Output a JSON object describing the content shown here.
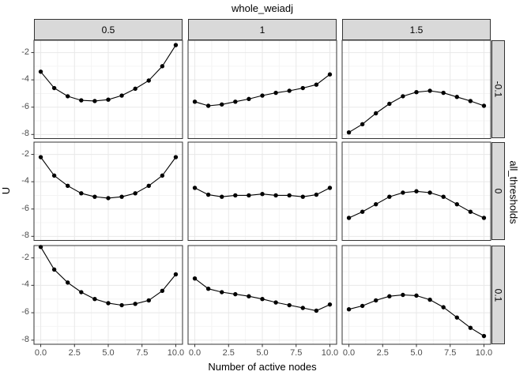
{
  "facets": {
    "col_title": "whole_weiadj",
    "row_title": "all_thresholds",
    "columns": [
      "0.5",
      "1",
      "1.5"
    ],
    "rows": [
      "-0.1",
      "0",
      "0.1"
    ]
  },
  "axes": {
    "x_title": "Number of active nodes",
    "y_title": "U",
    "x_tick_labels": [
      "0.0",
      "2.5",
      "5.0",
      "7.5",
      "10.0"
    ],
    "y_tick_labels": [
      "-2",
      "-4",
      "-6",
      "-8"
    ]
  },
  "colors": {
    "strip_fill": "#d9d9d9",
    "strip_border": "#333333",
    "panel_border": "#333333",
    "grid_major": "#e8e8e8",
    "grid_minor": "#f4f4f4",
    "series": "#000000",
    "tick_mark": "#333333",
    "tick_text": "#4d4d4d",
    "label_text": "#000000"
  },
  "chart_data": {
    "type": "line",
    "title": "whole_weiadj",
    "xlabel": "Number of active nodes",
    "ylabel": "U",
    "facet_columns_variable": "whole_weiadj",
    "facet_rows_variable": "all_thresholds",
    "x": [
      0,
      1,
      2,
      3,
      4,
      5,
      6,
      7,
      8,
      9,
      10
    ],
    "x_ticks": [
      0,
      2.5,
      5,
      7.5,
      10
    ],
    "y_ticks": [
      -2,
      -4,
      -6,
      -8
    ],
    "x_minor_ticks": [
      1.25,
      3.75,
      6.25,
      8.75
    ],
    "y_minor_ticks": [
      -3,
      -5,
      -7
    ],
    "xlim": [
      -0.5,
      10.5
    ],
    "ylim": [
      -8.3,
      -1.1
    ],
    "grid": true,
    "legend": "none",
    "panels": [
      {
        "whole_weiadj": "0.5",
        "all_thresholds": "-0.1",
        "values": [
          -3.4,
          -4.6,
          -5.2,
          -5.5,
          -5.55,
          -5.45,
          -5.15,
          -4.65,
          -4.05,
          -3.0,
          -1.45
        ]
      },
      {
        "whole_weiadj": "1",
        "all_thresholds": "-0.1",
        "values": [
          -5.6,
          -5.9,
          -5.8,
          -5.6,
          -5.4,
          -5.15,
          -4.95,
          -4.8,
          -4.6,
          -4.35,
          -3.6
        ]
      },
      {
        "whole_weiadj": "1.5",
        "all_thresholds": "-0.1",
        "values": [
          -7.85,
          -7.25,
          -6.45,
          -5.75,
          -5.2,
          -4.9,
          -4.8,
          -4.95,
          -5.25,
          -5.55,
          -5.9
        ]
      },
      {
        "whole_weiadj": "0.5",
        "all_thresholds": "0",
        "values": [
          -2.2,
          -3.55,
          -4.3,
          -4.85,
          -5.1,
          -5.2,
          -5.1,
          -4.85,
          -4.3,
          -3.55,
          -2.2
        ]
      },
      {
        "whole_weiadj": "1",
        "all_thresholds": "0",
        "values": [
          -4.45,
          -4.95,
          -5.1,
          -5.0,
          -5.0,
          -4.9,
          -5.0,
          -5.0,
          -5.1,
          -4.95,
          -4.45
        ]
      },
      {
        "whole_weiadj": "1.5",
        "all_thresholds": "0",
        "values": [
          -6.65,
          -6.2,
          -5.65,
          -5.1,
          -4.8,
          -4.7,
          -4.8,
          -5.1,
          -5.65,
          -6.2,
          -6.65
        ]
      },
      {
        "whole_weiadj": "0.5",
        "all_thresholds": "0.1",
        "values": [
          -1.2,
          -2.85,
          -3.8,
          -4.5,
          -5.0,
          -5.3,
          -5.45,
          -5.35,
          -5.1,
          -4.4,
          -3.2
        ]
      },
      {
        "whole_weiadj": "1",
        "all_thresholds": "0.1",
        "values": [
          -3.5,
          -4.25,
          -4.5,
          -4.65,
          -4.8,
          -5.0,
          -5.25,
          -5.45,
          -5.65,
          -5.85,
          -5.4
        ]
      },
      {
        "whole_weiadj": "1.5",
        "all_thresholds": "0.1",
        "values": [
          -5.75,
          -5.5,
          -5.1,
          -4.8,
          -4.7,
          -4.75,
          -5.05,
          -5.6,
          -6.35,
          -7.1,
          -7.7
        ]
      }
    ]
  }
}
